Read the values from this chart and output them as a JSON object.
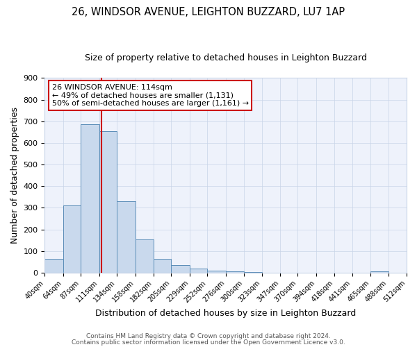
{
  "title": "26, WINDSOR AVENUE, LEIGHTON BUZZARD, LU7 1AP",
  "subtitle": "Size of property relative to detached houses in Leighton Buzzard",
  "xlabel": "Distribution of detached houses by size in Leighton Buzzard",
  "ylabel": "Number of detached properties",
  "bar_edges": [
    40,
    64,
    87,
    111,
    134,
    158,
    182,
    205,
    229,
    252,
    276,
    300,
    323,
    347,
    370,
    394,
    418,
    441,
    465,
    488,
    512
  ],
  "bar_heights": [
    63,
    310,
    685,
    655,
    330,
    155,
    65,
    35,
    18,
    8,
    5,
    2,
    1,
    0,
    0,
    0,
    0,
    0,
    5,
    0
  ],
  "bar_color": "#c9d9ed",
  "bar_edge_color": "#5b8db8",
  "vline_x": 114,
  "vline_color": "#cc0000",
  "ylim": [
    0,
    900
  ],
  "yticks": [
    0,
    100,
    200,
    300,
    400,
    500,
    600,
    700,
    800,
    900
  ],
  "annotation_line1": "26 WINDSOR AVENUE: 114sqm",
  "annotation_line2": "← 49% of detached houses are smaller (1,131)",
  "annotation_line3": "50% of semi-detached houses are larger (1,161) →",
  "annotation_box_color": "#cc0000",
  "footer_line1": "Contains HM Land Registry data © Crown copyright and database right 2024.",
  "footer_line2": "Contains public sector information licensed under the Open Government Licence v3.0.",
  "bg_color": "#eef2fb",
  "plot_bg_color": "#eef2fb",
  "grid_color": "#c8d4e8",
  "title_fontsize": 10.5,
  "subtitle_fontsize": 9,
  "tick_labels": [
    "40sqm",
    "64sqm",
    "87sqm",
    "111sqm",
    "134sqm",
    "158sqm",
    "182sqm",
    "205sqm",
    "229sqm",
    "252sqm",
    "276sqm",
    "300sqm",
    "323sqm",
    "347sqm",
    "370sqm",
    "394sqm",
    "418sqm",
    "441sqm",
    "465sqm",
    "488sqm",
    "512sqm"
  ]
}
